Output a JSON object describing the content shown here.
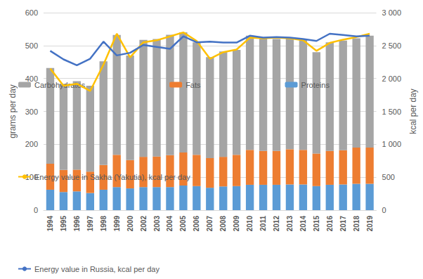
{
  "chart_data": {
    "type": "bar",
    "stacked": true,
    "grid": true,
    "legend": "bottom",
    "y_label": "grams per day",
    "y2_label": "kcal per day",
    "categories": [
      "1994",
      "1995",
      "1996",
      "1997",
      "1998",
      "1999",
      "2000",
      "2002",
      "2003",
      "2004",
      "2005",
      "2006",
      "2007",
      "2008",
      "2009",
      "2010",
      "2011",
      "2012",
      "2013",
      "2014",
      "2015",
      "2016",
      "2017",
      "2018",
      "2019"
    ],
    "ylim": [
      0,
      600
    ],
    "yticks": [
      0,
      100,
      200,
      300,
      400,
      500,
      600
    ],
    "y2lim": [
      0,
      3000
    ],
    "y2ticks": [
      0,
      500,
      {
        "value": 1000,
        "label": "1 000"
      },
      {
        "value": 1500,
        "label": "1 500"
      },
      {
        "value": 2000,
        "label": "2 000"
      },
      {
        "value": 2500,
        "label": "2 500"
      },
      {
        "value": 3000,
        "label": "3 000"
      }
    ],
    "series": [
      {
        "name": "Carbohydrates",
        "type": "bar",
        "color": "#a5a5a5",
        "values": [
          291,
          260,
          269,
          261,
          315,
          364,
          318,
          355,
          357,
          366,
          365,
          342,
          307,
          320,
          319,
          347,
          342,
          340,
          337,
          337,
          308,
          330,
          333,
          332,
          340
        ]
      },
      {
        "name": "Fats",
        "type": "bar",
        "color": "#ed7d31",
        "values": [
          79,
          67,
          66,
          65,
          75,
          98,
          86,
          92,
          93,
          97,
          100,
          95,
          90,
          90,
          95,
          106,
          103,
          103,
          107,
          105,
          99,
          103,
          104,
          110,
          110
        ]
      },
      {
        "name": "Proteins",
        "type": "bar",
        "color": "#5b9bd5",
        "values": [
          62,
          55,
          57,
          52,
          62,
          70,
          66,
          70,
          70,
          70,
          75,
          73,
          68,
          72,
          73,
          77,
          77,
          77,
          78,
          78,
          73,
          77,
          78,
          80,
          80
        ]
      },
      {
        "name": "Energy value in Sakha (Yakutia), kcal per day",
        "type": "line",
        "axis": "y2",
        "color": "#ffc000",
        "values": [
          2150,
          1890,
          1920,
          1810,
          2210,
          2680,
          2320,
          2550,
          2580,
          2640,
          2700,
          2570,
          2300,
          2400,
          2440,
          2620,
          2610,
          2620,
          2610,
          2580,
          2420,
          2540,
          2590,
          2630,
          2680
        ]
      },
      {
        "name": "Energy value in Russia, kcal per day",
        "type": "line",
        "axis": "y2",
        "color": "#4472c4",
        "values": [
          2420,
          2290,
          2200,
          2300,
          2560,
          2350,
          2390,
          2510,
          2480,
          2450,
          2640,
          2550,
          2560,
          2545,
          2545,
          2650,
          2620,
          2630,
          2620,
          2600,
          2570,
          2680,
          2660,
          2640,
          2650
        ]
      }
    ]
  }
}
